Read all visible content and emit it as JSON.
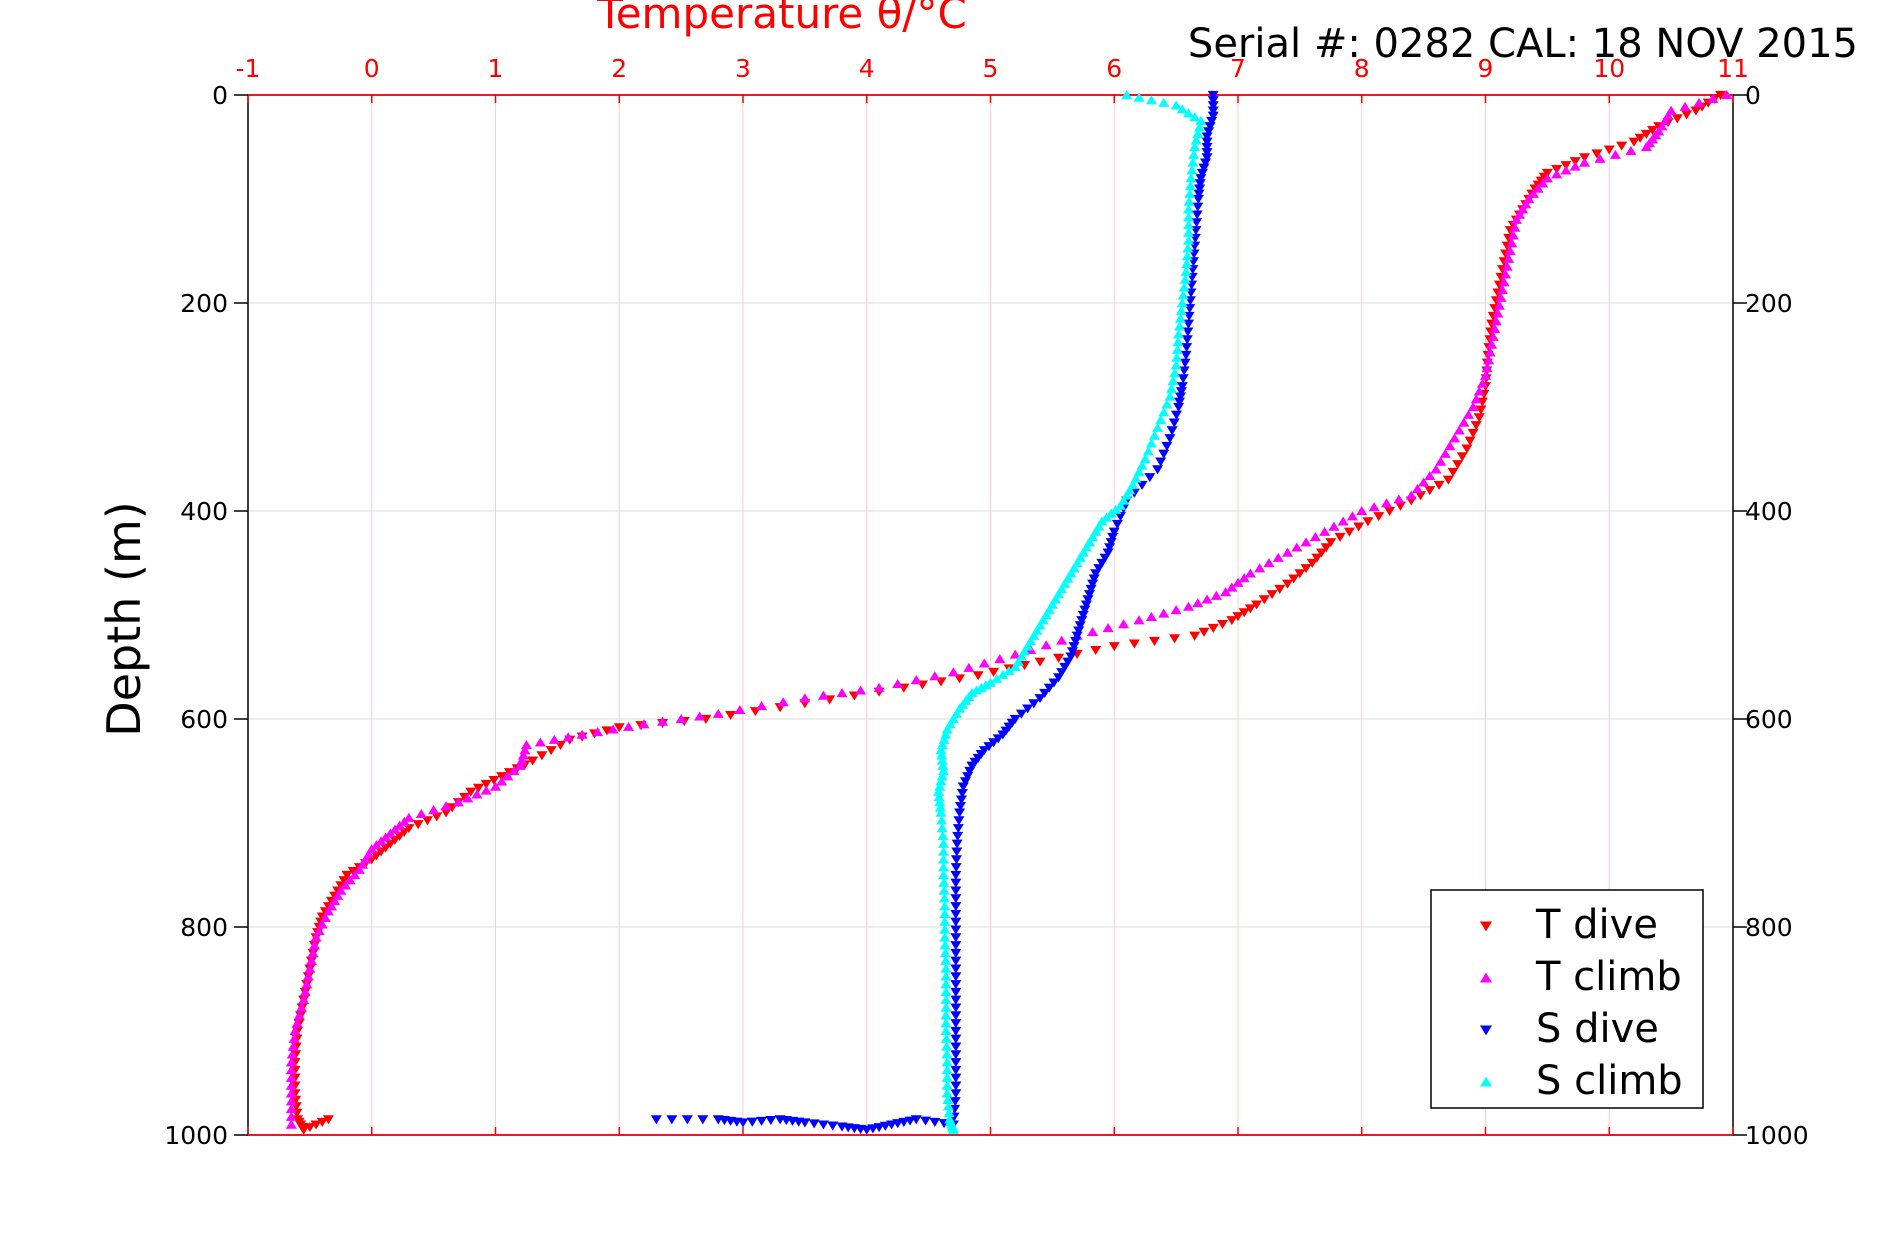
{
  "chart_data": {
    "type": "scatter",
    "title": "Temperature θ/°C",
    "annotation": "Serial #: 0282  CAL: 18 NOV 2015",
    "xlabel": "Temperature θ/°C",
    "ylabel": "Depth (m)",
    "xlim": [
      -1,
      11
    ],
    "ylim": [
      0,
      1000
    ],
    "y_reversed": true,
    "x_axis_position": "top",
    "x_ticks": [
      -1,
      0,
      1,
      2,
      3,
      4,
      5,
      6,
      7,
      8,
      9,
      10,
      11
    ],
    "y_ticks": [
      0,
      200,
      400,
      600,
      800,
      1000
    ],
    "x_tick_color": "#ff0000",
    "grid": true,
    "legend_position": "bottom-right",
    "series": [
      {
        "name": "T dive",
        "marker": "triangle-down",
        "color": "#ff0000",
        "points": [
          [
            10.9,
            0
          ],
          [
            10.7,
            15
          ],
          [
            10.4,
            30
          ],
          [
            10.2,
            45
          ],
          [
            9.8,
            60
          ],
          [
            9.5,
            75
          ],
          [
            9.4,
            90
          ],
          [
            9.3,
            110
          ],
          [
            9.2,
            130
          ],
          [
            9.15,
            160
          ],
          [
            9.1,
            190
          ],
          [
            9.05,
            220
          ],
          [
            9.02,
            250
          ],
          [
            9.0,
            280
          ],
          [
            8.95,
            310
          ],
          [
            8.85,
            340
          ],
          [
            8.7,
            370
          ],
          [
            8.4,
            390
          ],
          [
            8.05,
            410
          ],
          [
            7.75,
            430
          ],
          [
            7.6,
            450
          ],
          [
            7.4,
            470
          ],
          [
            7.15,
            490
          ],
          [
            6.95,
            505
          ],
          [
            6.65,
            520
          ],
          [
            6.0,
            530
          ],
          [
            5.4,
            545
          ],
          [
            4.9,
            558
          ],
          [
            4.3,
            570
          ],
          [
            3.5,
            585
          ],
          [
            2.7,
            600
          ],
          [
            2.0,
            608
          ],
          [
            1.6,
            620
          ],
          [
            1.3,
            640
          ],
          [
            1.05,
            655
          ],
          [
            0.8,
            670
          ],
          [
            0.6,
            690
          ],
          [
            0.3,
            705
          ],
          [
            0.15,
            720
          ],
          [
            0.0,
            735
          ],
          [
            -0.2,
            750
          ],
          [
            -0.3,
            770
          ],
          [
            -0.4,
            790
          ],
          [
            -0.45,
            810
          ],
          [
            -0.5,
            840
          ],
          [
            -0.55,
            870
          ],
          [
            -0.6,
            900
          ],
          [
            -0.62,
            930
          ],
          [
            -0.62,
            960
          ],
          [
            -0.6,
            985
          ],
          [
            -0.55,
            995
          ],
          [
            -0.35,
            985
          ]
        ]
      },
      {
        "name": "T climb",
        "marker": "triangle-up",
        "color": "#ff00ff",
        "points": [
          [
            10.95,
            0
          ],
          [
            10.5,
            15
          ],
          [
            10.4,
            35
          ],
          [
            10.3,
            50
          ],
          [
            9.8,
            65
          ],
          [
            9.5,
            80
          ],
          [
            9.35,
            100
          ],
          [
            9.25,
            120
          ],
          [
            9.2,
            150
          ],
          [
            9.15,
            180
          ],
          [
            9.1,
            210
          ],
          [
            9.05,
            240
          ],
          [
            9.0,
            270
          ],
          [
            8.9,
            300
          ],
          [
            8.75,
            330
          ],
          [
            8.6,
            360
          ],
          [
            8.4,
            385
          ],
          [
            8.0,
            400
          ],
          [
            7.7,
            420
          ],
          [
            7.4,
            440
          ],
          [
            7.1,
            460
          ],
          [
            6.9,
            478
          ],
          [
            6.6,
            492
          ],
          [
            6.2,
            505
          ],
          [
            5.7,
            520
          ],
          [
            5.2,
            538
          ],
          [
            4.7,
            555
          ],
          [
            4.1,
            570
          ],
          [
            3.5,
            580
          ],
          [
            2.8,
            595
          ],
          [
            2.2,
            605
          ],
          [
            1.7,
            615
          ],
          [
            1.25,
            625
          ],
          [
            1.2,
            645
          ],
          [
            1.0,
            665
          ],
          [
            0.7,
            680
          ],
          [
            0.3,
            695
          ],
          [
            0.15,
            710
          ],
          [
            0.0,
            725
          ],
          [
            -0.1,
            745
          ],
          [
            -0.25,
            765
          ],
          [
            -0.35,
            785
          ],
          [
            -0.45,
            810
          ],
          [
            -0.5,
            840
          ],
          [
            -0.55,
            870
          ],
          [
            -0.62,
            900
          ],
          [
            -0.65,
            930
          ],
          [
            -0.65,
            960
          ],
          [
            -0.65,
            990
          ]
        ]
      },
      {
        "name": "S dive",
        "marker": "triangle-down",
        "color": "#0000ff",
        "points": [
          [
            6.8,
            0
          ],
          [
            6.8,
            20
          ],
          [
            6.75,
            40
          ],
          [
            6.75,
            60
          ],
          [
            6.7,
            80
          ],
          [
            6.68,
            100
          ],
          [
            6.66,
            130
          ],
          [
            6.64,
            160
          ],
          [
            6.62,
            190
          ],
          [
            6.6,
            220
          ],
          [
            6.58,
            250
          ],
          [
            6.55,
            280
          ],
          [
            6.52,
            300
          ],
          [
            6.45,
            330
          ],
          [
            6.35,
            360
          ],
          [
            6.1,
            390
          ],
          [
            6.0,
            420
          ],
          [
            5.95,
            440
          ],
          [
            5.85,
            460
          ],
          [
            5.8,
            480
          ],
          [
            5.75,
            500
          ],
          [
            5.7,
            520
          ],
          [
            5.65,
            540
          ],
          [
            5.55,
            560
          ],
          [
            5.4,
            580
          ],
          [
            5.2,
            600
          ],
          [
            5.1,
            615
          ],
          [
            4.95,
            630
          ],
          [
            4.85,
            645
          ],
          [
            4.78,
            665
          ],
          [
            4.75,
            690
          ],
          [
            4.73,
            720
          ],
          [
            4.72,
            750
          ],
          [
            4.72,
            780
          ],
          [
            4.72,
            810
          ],
          [
            4.72,
            840
          ],
          [
            4.72,
            870
          ],
          [
            4.72,
            900
          ],
          [
            4.72,
            930
          ],
          [
            4.72,
            960
          ],
          [
            4.7,
            990
          ],
          [
            4.4,
            985
          ],
          [
            4.2,
            990
          ],
          [
            4.0,
            995
          ],
          [
            3.8,
            992
          ],
          [
            3.5,
            988
          ],
          [
            3.3,
            985
          ],
          [
            3.0,
            988
          ],
          [
            2.8,
            985
          ],
          [
            2.3,
            985
          ]
        ]
      },
      {
        "name": "S climb",
        "marker": "triangle-up",
        "color": "#00ffff",
        "points": [
          [
            6.1,
            0
          ],
          [
            6.5,
            10
          ],
          [
            6.7,
            25
          ],
          [
            6.65,
            50
          ],
          [
            6.62,
            80
          ],
          [
            6.6,
            110
          ],
          [
            6.6,
            140
          ],
          [
            6.58,
            170
          ],
          [
            6.55,
            200
          ],
          [
            6.52,
            230
          ],
          [
            6.5,
            260
          ],
          [
            6.45,
            290
          ],
          [
            6.35,
            320
          ],
          [
            6.25,
            350
          ],
          [
            6.15,
            375
          ],
          [
            6.05,
            395
          ],
          [
            5.9,
            410
          ],
          [
            5.8,
            430
          ],
          [
            5.7,
            450
          ],
          [
            5.6,
            470
          ],
          [
            5.5,
            490
          ],
          [
            5.4,
            510
          ],
          [
            5.3,
            530
          ],
          [
            5.2,
            550
          ],
          [
            5.0,
            565
          ],
          [
            4.85,
            575
          ],
          [
            4.75,
            590
          ],
          [
            4.65,
            610
          ],
          [
            4.6,
            630
          ],
          [
            4.62,
            650
          ],
          [
            4.58,
            670
          ],
          [
            4.6,
            690
          ],
          [
            4.62,
            720
          ],
          [
            4.62,
            750
          ],
          [
            4.63,
            780
          ],
          [
            4.63,
            810
          ],
          [
            4.64,
            840
          ],
          [
            4.64,
            870
          ],
          [
            4.64,
            900
          ],
          [
            4.65,
            930
          ],
          [
            4.65,
            960
          ],
          [
            4.67,
            985
          ],
          [
            4.7,
            995
          ]
        ]
      }
    ]
  }
}
